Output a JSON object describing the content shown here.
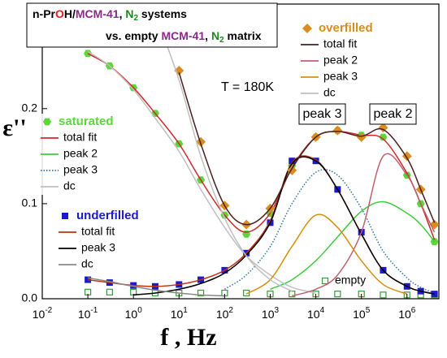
{
  "chart_data": {
    "type": "line",
    "title_lines": [
      [
        {
          "text": "n-Pr",
          "color": "#000000"
        },
        {
          "text": "O",
          "color": "#e02020"
        },
        {
          "text": "H/",
          "color": "#000000"
        },
        {
          "text": "MCM-41",
          "color": "#8a2a8a"
        },
        {
          "text": ", ",
          "color": "#000000"
        },
        {
          "text": "N",
          "color": "#1a8a1a"
        },
        {
          "text": "2",
          "color": "#1a8a1a",
          "sub": true
        },
        {
          "text": " systems",
          "color": "#000000"
        }
      ],
      [
        {
          "text": "vs. empty ",
          "color": "#000000"
        },
        {
          "text": "MCM-41",
          "color": "#8a2a8a"
        },
        {
          "text": ", ",
          "color": "#000000"
        },
        {
          "text": "N",
          "color": "#1a8a1a"
        },
        {
          "text": "2",
          "color": "#1a8a1a",
          "sub": true
        },
        {
          "text": " matrix",
          "color": "#000000"
        }
      ]
    ],
    "annotations": {
      "temperature": "T = 180K",
      "peak3": "peak 3",
      "peak2": "peak 2",
      "empty": "empty"
    },
    "xlabel": "f , Hz",
    "ylabel": "ε''",
    "xscale": "log",
    "xlim": [
      0.01,
      5000000
    ],
    "ylim": [
      0,
      0.31
    ],
    "xticks": [
      {
        "value": 0.01,
        "label": "10",
        "exp": "-2"
      },
      {
        "value": 0.1,
        "label": "10",
        "exp": "-1"
      },
      {
        "value": 1,
        "label": "10",
        "exp": "0"
      },
      {
        "value": 10,
        "label": "10",
        "exp": "1"
      },
      {
        "value": 100,
        "label": "10",
        "exp": "2"
      },
      {
        "value": 1000,
        "label": "10",
        "exp": "3"
      },
      {
        "value": 10000,
        "label": "10",
        "exp": "4"
      },
      {
        "value": 100000,
        "label": "10",
        "exp": "5"
      },
      {
        "value": 1000000,
        "label": "10",
        "exp": "6"
      }
    ],
    "yticks": [
      {
        "value": 0,
        "label": "0.0"
      },
      0.1,
      0.2
    ],
    "x": [
      0.1,
      0.3,
      1,
      3,
      10,
      30,
      100,
      300,
      1000,
      3000,
      10000,
      30000,
      100000,
      300000,
      1000000,
      2000000,
      4000000
    ],
    "groups": [
      {
        "name": "saturated",
        "color": "#5cd63a",
        "marker": "hexagon",
        "values": [
          0.258,
          0.245,
          0.222,
          0.195,
          0.163,
          0.125,
          0.088,
          0.068,
          0.09,
          0.14,
          0.17,
          0.177,
          0.172,
          0.17,
          0.13,
          0.1,
          0.06
        ],
        "fits": [
          {
            "name": "total fit",
            "color": "#d02a2a",
            "dash": false,
            "values": [
              0.258,
              0.245,
              0.222,
              0.195,
              0.163,
              0.125,
              0.088,
              0.07,
              0.09,
              0.138,
              0.17,
              0.176,
              0.172,
              0.168,
              0.132,
              0.1,
              0.062
            ]
          },
          {
            "name": "peak 2",
            "color": "#3ccc3c",
            "dash": false,
            "values": [
              null,
              null,
              null,
              null,
              null,
              null,
              null,
              null,
              0.01,
              0.02,
              0.04,
              0.065,
              0.092,
              0.102,
              0.09,
              0.078,
              0.06
            ]
          },
          {
            "name": "peak 3",
            "color": "#3378aa",
            "dash": true,
            "values": [
              null,
              null,
              null,
              null,
              null,
              null,
              0.01,
              0.025,
              0.055,
              0.1,
              0.133,
              0.13,
              0.095,
              0.05,
              0.022,
              0.012,
              0.006
            ]
          },
          {
            "name": "dc",
            "color": "#c0c0c0",
            "dash": false,
            "values": [
              0.26,
              0.245,
              0.22,
              0.19,
              0.155,
              0.115,
              0.075,
              0.045,
              0.025,
              0.012,
              0.006,
              null,
              null,
              null,
              null,
              null,
              null
            ]
          }
        ]
      },
      {
        "name": "underfilled",
        "color": "#1a1acc",
        "marker": "square",
        "values": [
          0.02,
          0.017,
          0.014,
          0.013,
          0.015,
          0.02,
          0.03,
          0.048,
          0.08,
          0.145,
          0.145,
          0.115,
          0.07,
          0.03,
          0.013,
          0.008,
          0.005
        ],
        "fits": [
          {
            "name": "total fit",
            "color": "#c03010",
            "dash": false,
            "values": [
              0.02,
              0.017,
              0.014,
              0.013,
              0.015,
              0.02,
              0.03,
              0.048,
              0.082,
              0.143,
              0.146,
              0.115,
              0.068,
              0.03,
              0.013,
              0.008,
              0.005
            ]
          },
          {
            "name": "peak 3",
            "color": "#000000",
            "dash": false,
            "values": [
              null,
              null,
              0.004,
              0.006,
              0.01,
              0.016,
              0.027,
              0.046,
              0.08,
              0.142,
              0.145,
              0.115,
              0.068,
              0.03,
              0.013,
              0.008,
              0.005
            ]
          },
          {
            "name": "dc",
            "color": "#888888",
            "dash": false,
            "values": [
              0.022,
              0.018,
              0.013,
              0.009,
              0.006,
              0.004,
              0.003,
              null,
              null,
              null,
              null,
              null,
              null,
              null,
              null,
              null,
              null
            ]
          }
        ]
      },
      {
        "name": "overfilled",
        "color": "#d98c1f",
        "marker": "diamond",
        "values": [
          null,
          null,
          null,
          null,
          0.24,
          0.165,
          0.098,
          0.078,
          0.095,
          0.135,
          0.17,
          0.177,
          0.17,
          0.18,
          0.15,
          0.115,
          0.078
        ],
        "fits": [
          {
            "name": "total fit",
            "color": "#4a2020",
            "dash": false,
            "values": [
              null,
              null,
              null,
              null,
              0.238,
              0.163,
              0.098,
              0.078,
              0.095,
              0.137,
              0.17,
              0.176,
              0.171,
              0.178,
              0.148,
              0.115,
              0.08
            ]
          },
          {
            "name": "peak 2",
            "color": "#c06070",
            "dash": false,
            "values": [
              null,
              null,
              null,
              null,
              null,
              null,
              null,
              null,
              null,
              0.003,
              0.01,
              0.025,
              0.07,
              0.15,
              0.13,
              0.1,
              0.07
            ]
          },
          {
            "name": "peak 3",
            "color": "#d4900f",
            "dash": false,
            "values": [
              null,
              null,
              null,
              null,
              null,
              null,
              null,
              0.005,
              0.02,
              0.055,
              0.088,
              0.075,
              0.04,
              0.015,
              0.005,
              null,
              null
            ]
          },
          {
            "name": "dc",
            "color": "#c0c0c0",
            "dash": false,
            "values": [
              null,
              null,
              null,
              0.3,
              0.23,
              0.15,
              0.085,
              0.045,
              0.02,
              0.008,
              null,
              null,
              null,
              null,
              null,
              null,
              null
            ]
          }
        ]
      }
    ],
    "empty_series": {
      "name": "empty",
      "color": "#3a9a3a",
      "marker": "open-square",
      "values": [
        0.007,
        0.007,
        0.007,
        0.006,
        0.006,
        0.006,
        0.006,
        0.006,
        0.005,
        0.005,
        0.005,
        0.005,
        0.005,
        0.004,
        0.004,
        0.004,
        0.004
      ]
    }
  }
}
